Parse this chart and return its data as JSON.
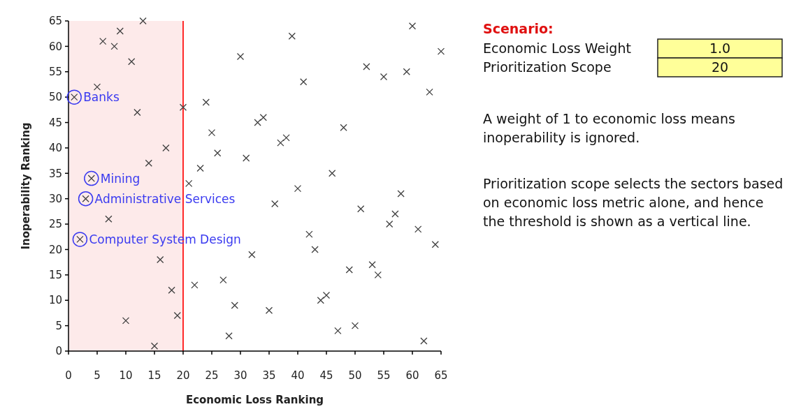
{
  "chart_data": {
    "type": "scatter",
    "xlabel": "Economic Loss Ranking",
    "ylabel": "Inoperability Ranking",
    "xlim": [
      0,
      65
    ],
    "ylim": [
      0,
      65
    ],
    "xticks": [
      0,
      5,
      10,
      15,
      20,
      25,
      30,
      35,
      40,
      45,
      50,
      55,
      60,
      65
    ],
    "yticks": [
      0,
      5,
      10,
      15,
      20,
      25,
      30,
      35,
      40,
      45,
      50,
      55,
      60,
      65
    ],
    "marker": "cross",
    "series": [
      {
        "color": "#404040",
        "x": [
          1,
          2,
          3,
          4,
          5,
          6,
          7,
          8,
          9,
          10,
          11,
          12,
          13,
          14,
          15,
          16,
          17,
          18,
          19,
          20,
          21,
          22,
          23,
          24,
          25,
          26,
          27,
          28,
          29,
          30,
          31,
          32,
          33,
          34,
          35,
          36,
          37,
          38,
          39,
          40,
          41,
          42,
          43,
          44,
          45,
          46,
          47,
          48,
          49,
          50,
          51,
          52,
          53,
          54,
          55,
          56,
          57,
          58,
          59,
          60,
          61,
          62,
          63,
          64,
          65
        ],
        "values": [
          50,
          22,
          30,
          34,
          52,
          61,
          26,
          60,
          63,
          6,
          57,
          47,
          65,
          37,
          1,
          18,
          40,
          12,
          7,
          48,
          33,
          13,
          36,
          49,
          43,
          39,
          14,
          3,
          9,
          58,
          38,
          19,
          45,
          46,
          8,
          29,
          41,
          42,
          62,
          32,
          53,
          23,
          20,
          10,
          11,
          35,
          4,
          44,
          16,
          5,
          28,
          56,
          17,
          15,
          54,
          25,
          27,
          31,
          55,
          64,
          24,
          2,
          51,
          21,
          59
        ]
      }
    ],
    "bands": [
      {
        "axis": "x",
        "from": 0,
        "to": 20,
        "color": "#fdeaea"
      }
    ],
    "ref_lines": [
      {
        "axis": "x",
        "value": 20,
        "color": "#ff2a2a"
      }
    ],
    "annotations": [
      {
        "text": "Banks",
        "x": 1,
        "y": 50
      },
      {
        "text": "Mining",
        "x": 4,
        "y": 34
      },
      {
        "text": "Administrative Services",
        "x": 3,
        "y": 30
      },
      {
        "text": "Computer System Design",
        "x": 2,
        "y": 22
      },
      "Scenario:",
      "Economic Loss Weight",
      "1.0",
      "Prioritization Scope",
      "20",
      "A weight of 1 to economic loss means\ninoperability is ignored.",
      "Prioritization scope selects the sectors based\non economic loss metric alone, and hence\nthe threshold is shown as a vertical line."
    ]
  }
}
